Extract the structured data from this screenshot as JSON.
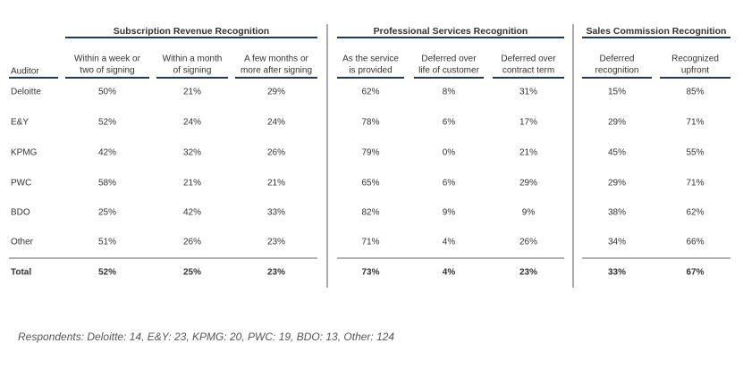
{
  "groups": [
    "Subscription Revenue Recognition",
    "Professional Services Recognition",
    "Sales Commission Recognition"
  ],
  "auditor_header": "Auditor",
  "columns": [
    [
      "Within a week or",
      "two of signing"
    ],
    [
      "Within a month",
      "of signing"
    ],
    [
      "A few months or",
      "more after signing"
    ],
    [
      "As the service",
      "is provided"
    ],
    [
      "Deferred over",
      "life of customer"
    ],
    [
      "Deferred over",
      "contract term"
    ],
    [
      "Deferred",
      "recognition"
    ],
    [
      "Recognized",
      "upfront"
    ]
  ],
  "rows": [
    [
      "Deloitte",
      "50%",
      "21%",
      "29%",
      "62%",
      "8%",
      "31%",
      "15%",
      "85%"
    ],
    [
      "E&Y",
      "52%",
      "24%",
      "24%",
      "78%",
      "6%",
      "17%",
      "29%",
      "71%"
    ],
    [
      "KPMG",
      "42%",
      "32%",
      "26%",
      "79%",
      "0%",
      "21%",
      "45%",
      "55%"
    ],
    [
      "PWC",
      "58%",
      "21%",
      "21%",
      "65%",
      "6%",
      "29%",
      "29%",
      "71%"
    ],
    [
      "BDO",
      "25%",
      "42%",
      "33%",
      "82%",
      "9%",
      "9%",
      "38%",
      "62%"
    ],
    [
      "Other",
      "51%",
      "26%",
      "23%",
      "71%",
      "4%",
      "26%",
      "34%",
      "66%"
    ]
  ],
  "total": [
    "Total",
    "52%",
    "25%",
    "23%",
    "73%",
    "4%",
    "23%",
    "33%",
    "67%"
  ],
  "footnote": "Respondents: Deloitte: 14, E&Y: 23, KPMG: 20, PWC: 19, BDO: 13, Other: 124"
}
